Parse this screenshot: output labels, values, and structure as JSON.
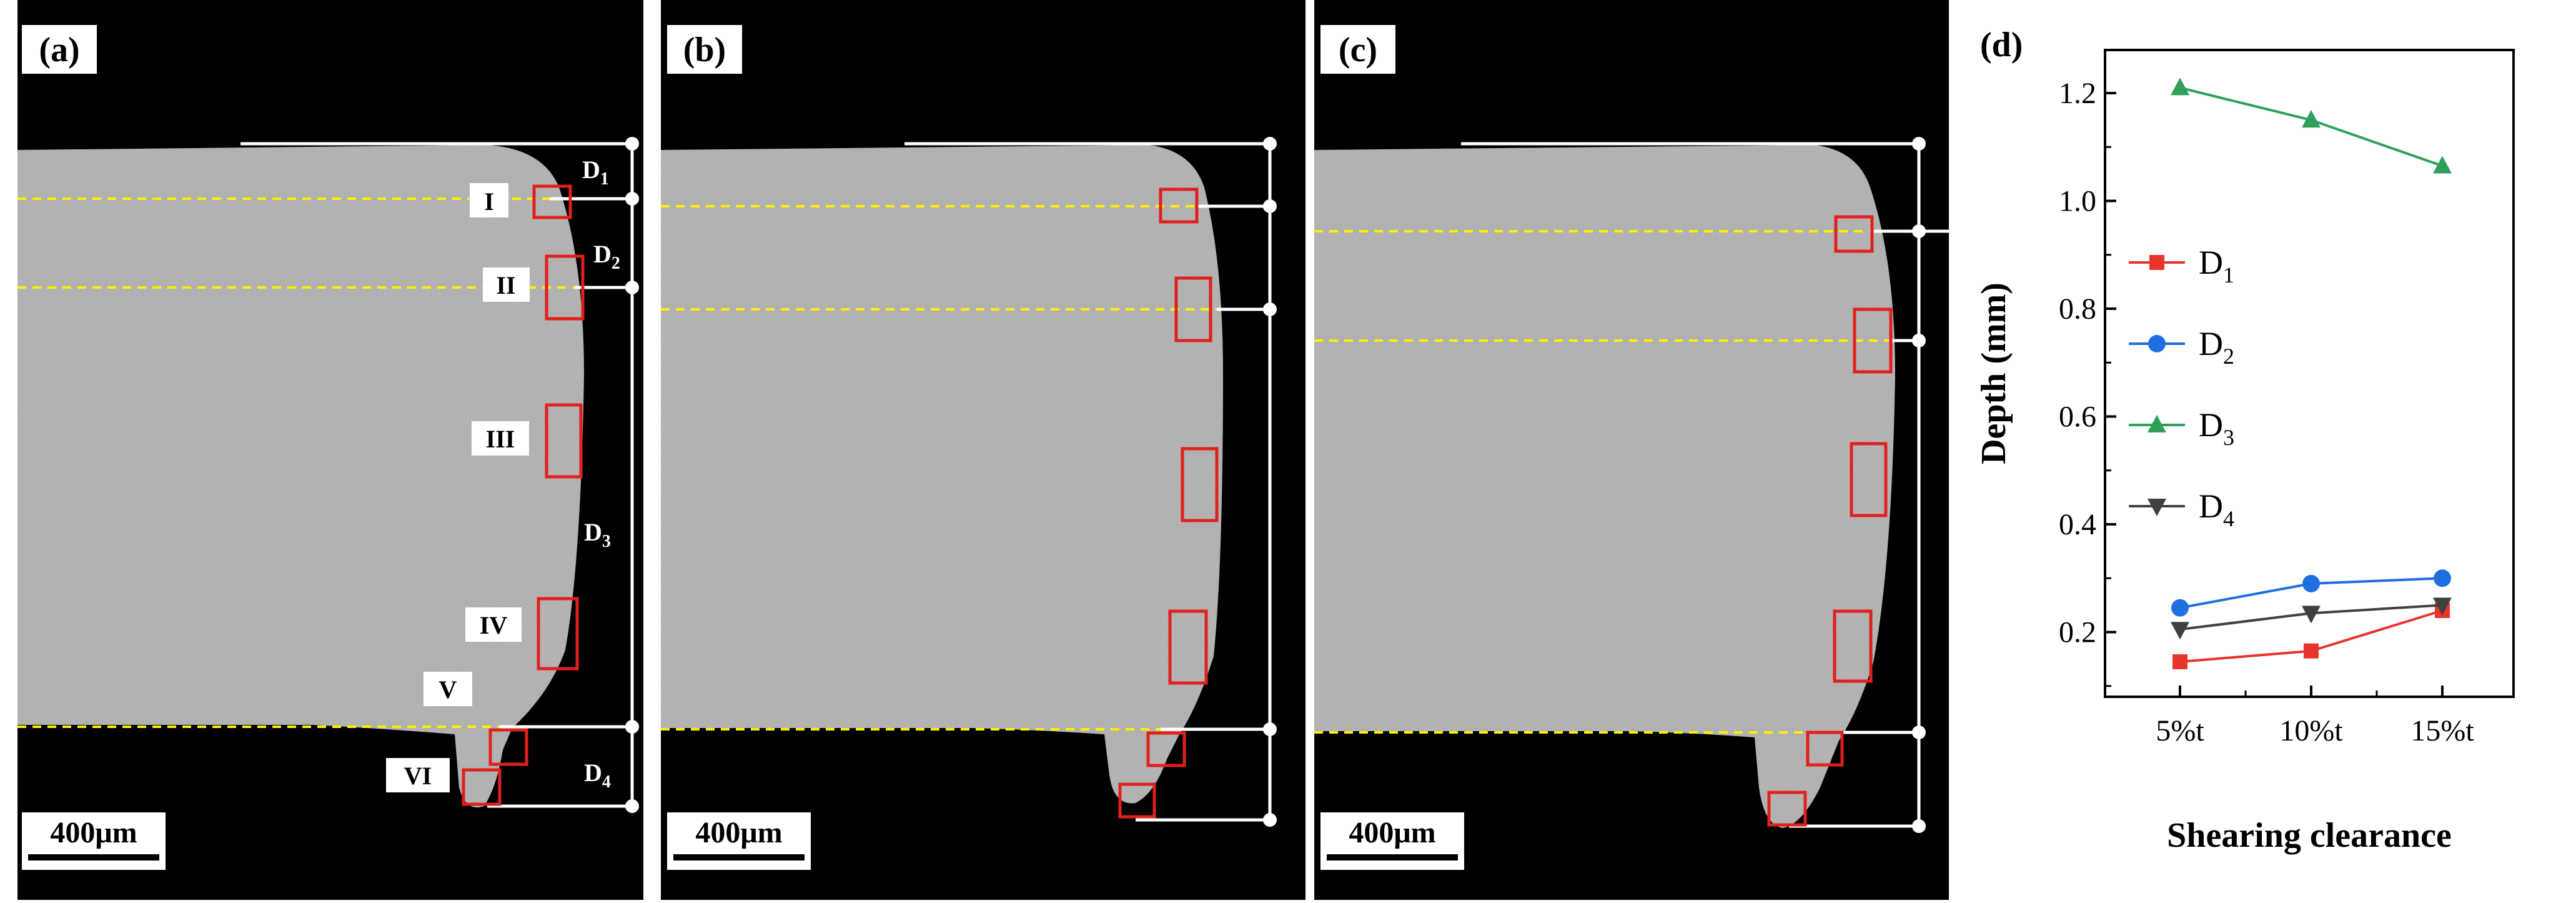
{
  "panels": [
    {
      "label": "(a)",
      "scale_bar": "400μm",
      "region_labels": [
        "I",
        "II",
        "III",
        "IV",
        "V",
        "VI"
      ],
      "depth_labels": [
        "D1",
        "D2",
        "D3",
        "D4"
      ]
    },
    {
      "label": "(b)",
      "scale_bar": "400μm"
    },
    {
      "label": "(c)",
      "scale_bar": "400μm"
    }
  ],
  "colors": {
    "background": "#000000",
    "micrograph": "#a6a6a6",
    "marker_box": "#e0201c",
    "guide_line": "#ffee00",
    "dimension_line": "#ffffff"
  },
  "chart_data": {
    "panel_label": "(d)",
    "type": "line",
    "categories": [
      "5%t",
      "10%t",
      "15%t"
    ],
    "xlabel": "Shearing clearance",
    "ylabel": "Depth (mm)",
    "ylim": [
      0.08,
      1.28
    ],
    "yticks": [
      "0.2",
      "0.4",
      "0.6",
      "0.8",
      "1.0",
      "1.2"
    ],
    "legend_position": "center-left",
    "series": [
      {
        "name": "D",
        "sub": "1",
        "values": [
          0.145,
          0.165,
          0.24
        ],
        "color": "#e8342c",
        "marker": "square"
      },
      {
        "name": "D",
        "sub": "2",
        "values": [
          0.245,
          0.29,
          0.3
        ],
        "color": "#1e6fe0",
        "marker": "circle"
      },
      {
        "name": "D",
        "sub": "3",
        "values": [
          1.21,
          1.15,
          1.065
        ],
        "color": "#2fa05a",
        "marker": "triangle-up"
      },
      {
        "name": "D",
        "sub": "4",
        "values": [
          0.205,
          0.235,
          0.25
        ],
        "color": "#404040",
        "marker": "triangle-down"
      }
    ]
  }
}
